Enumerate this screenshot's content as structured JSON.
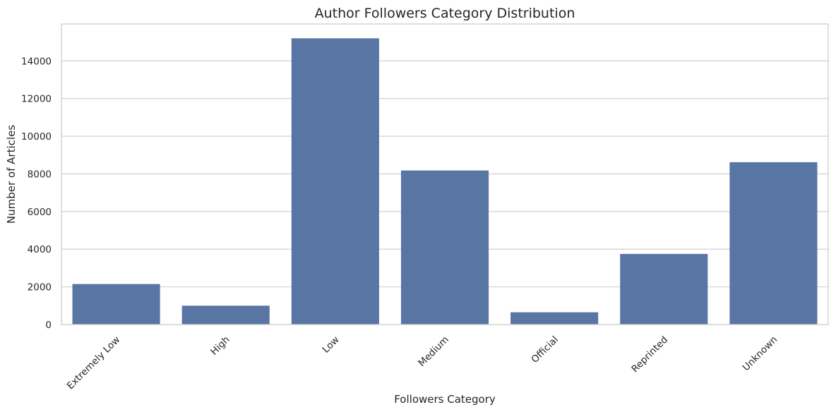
{
  "chart_data": {
    "type": "bar",
    "title": "Author Followers Category Distribution",
    "xlabel": "Followers Category",
    "ylabel": "Number of Articles",
    "categories": [
      "Extremely Low",
      "High",
      "Low",
      "Medium",
      "Official",
      "Reprinted",
      "Unknown"
    ],
    "values": [
      2150,
      1000,
      15200,
      8180,
      650,
      3750,
      8620
    ],
    "ylim": [
      0,
      15960
    ],
    "yticks": [
      0,
      2000,
      4000,
      6000,
      8000,
      10000,
      12000,
      14000
    ],
    "grid": true,
    "bar_color": "#5975a4",
    "grid_color": "#cccccc",
    "frame_color": "#cccccc"
  }
}
